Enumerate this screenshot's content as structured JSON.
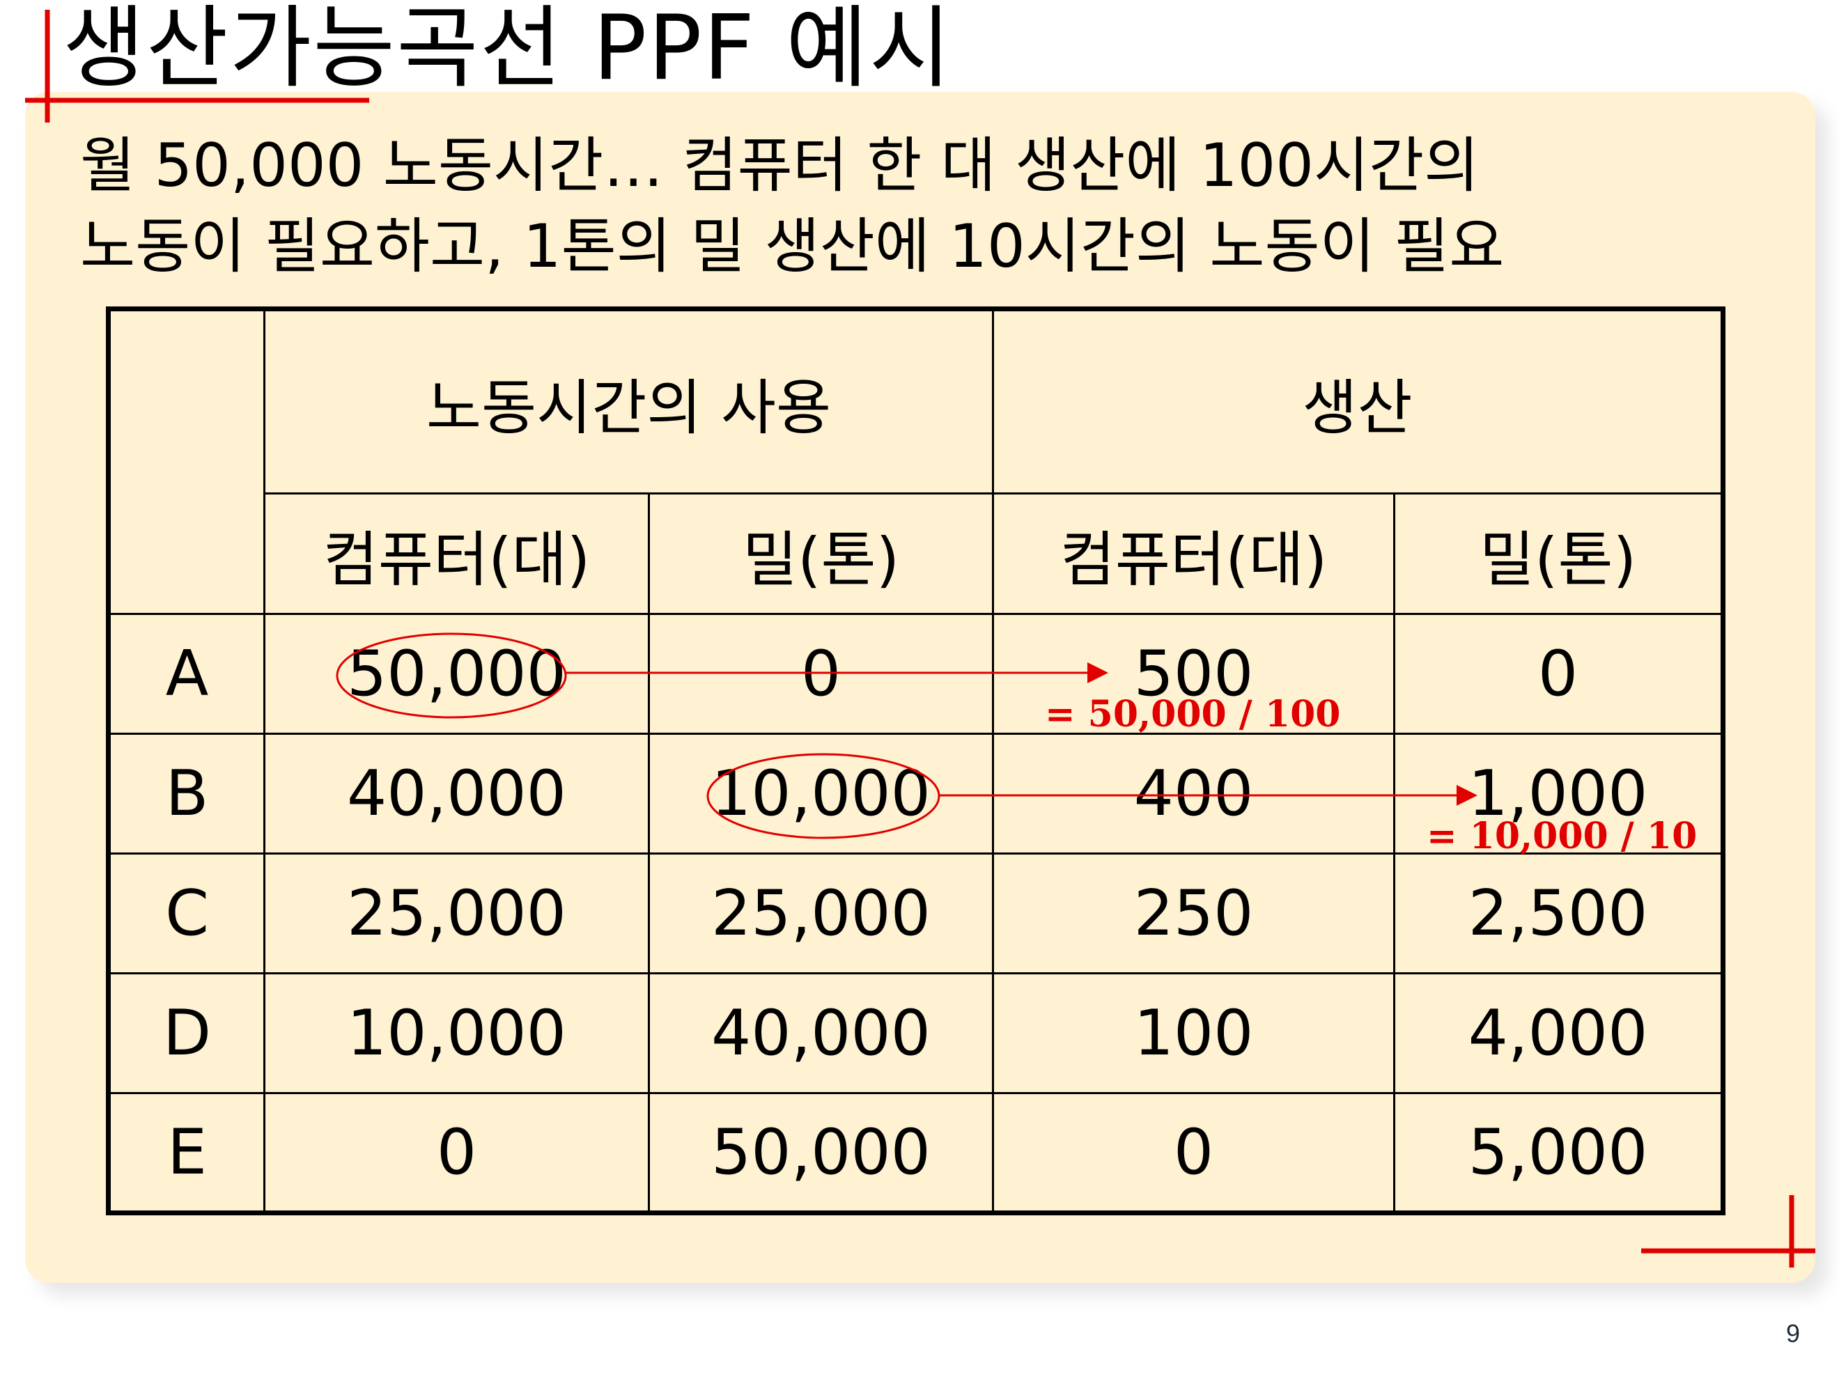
{
  "slide": {
    "title": "생산가능곡선 PPF 예시",
    "intro_line1": "월 50,000 노동시간… 컴퓨터 한 대 생산에 100시간의",
    "intro_line2": "노동이 필요하고, 1톤의 밀 생산에 10시간의 노동이 필요",
    "page_number": "9"
  },
  "table": {
    "group_labor": "노동시간의 사용",
    "group_production": "생산",
    "sub_computer": "컴퓨터(대)",
    "sub_wheat": "밀(톤)",
    "rows": [
      {
        "label": "A",
        "labor_computer": "50,000",
        "labor_wheat": "0",
        "prod_computer": "500",
        "prod_wheat": "0"
      },
      {
        "label": "B",
        "labor_computer": "40,000",
        "labor_wheat": "10,000",
        "prod_computer": "400",
        "prod_wheat": "1,000"
      },
      {
        "label": "C",
        "labor_computer": "25,000",
        "labor_wheat": "25,000",
        "prod_computer": "250",
        "prod_wheat": "2,500"
      },
      {
        "label": "D",
        "labor_computer": "10,000",
        "labor_wheat": "40,000",
        "prod_computer": "100",
        "prod_wheat": "4,000"
      },
      {
        "label": "E",
        "labor_computer": "0",
        "labor_wheat": "50,000",
        "prod_computer": "0",
        "prod_wheat": "5,000"
      }
    ]
  },
  "annotations": {
    "note_a": "= 50,000 / 100",
    "note_b": "= 10,000 / 10",
    "color": "#e00000"
  },
  "colors": {
    "panel": "#fff2d2",
    "accent": "#e00000"
  }
}
